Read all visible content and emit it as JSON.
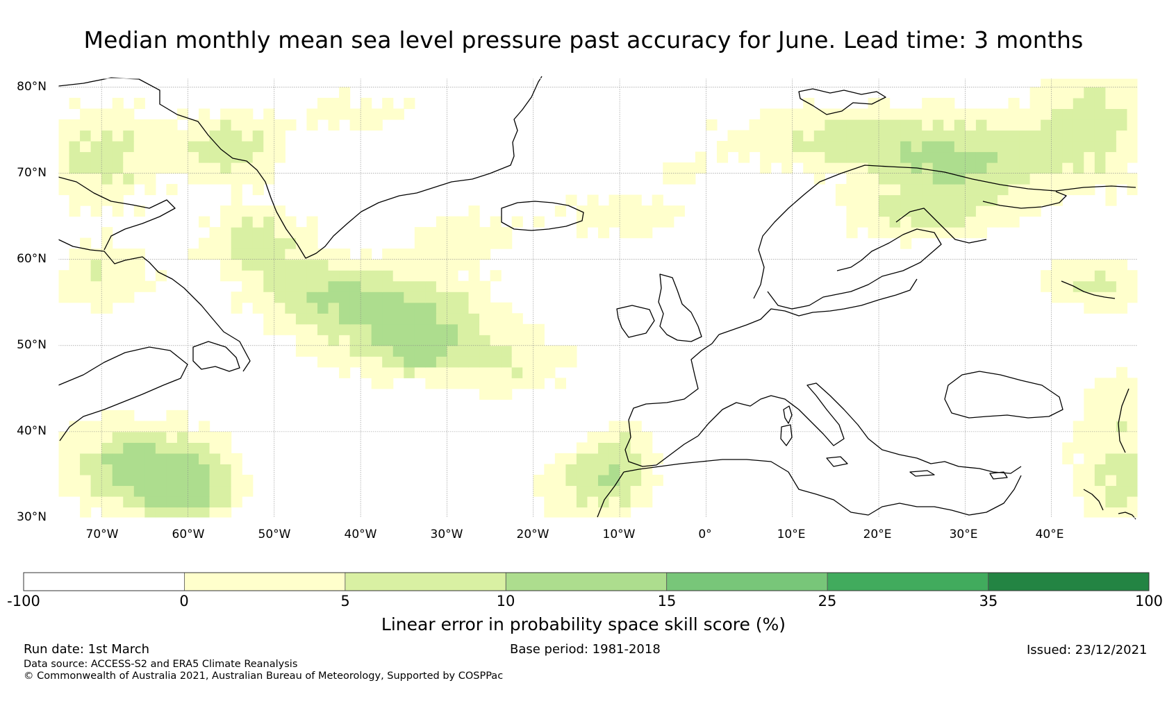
{
  "title": "Median monthly mean sea level pressure past accuracy for June. Lead time: 3 months",
  "map": {
    "lon_range": [
      -75,
      50
    ],
    "lat_range": [
      30,
      81
    ],
    "lat_labels": [
      "30°N",
      "40°N",
      "50°N",
      "60°N",
      "70°N",
      "80°N"
    ],
    "lat_values": [
      30,
      40,
      50,
      60,
      70,
      80
    ],
    "lon_labels": [
      "70°W",
      "60°W",
      "50°W",
      "40°W",
      "30°W",
      "20°W",
      "10°W",
      "0°",
      "10°E",
      "20°E",
      "30°E",
      "40°E"
    ],
    "lon_values": [
      -70,
      -60,
      -50,
      -40,
      -30,
      -20,
      -10,
      0,
      10,
      20,
      30,
      40
    ]
  },
  "colorbar": {
    "boundaries": [
      "-100",
      "0",
      "5",
      "10",
      "15",
      "25",
      "35",
      "100"
    ],
    "colors": [
      "#ffffff",
      "#ffffcc",
      "#d9f0a3",
      "#addd8e",
      "#78c679",
      "#41ab5d",
      "#238443"
    ],
    "label": "Linear error in probability space skill score (%)"
  },
  "footer": {
    "run_date": "Run date: 1st March",
    "base_period": "Base period: 1981-2018",
    "issued": "Issued: 23/12/2021",
    "data_source": "Data source: ACCESS-S2 and ERA5 Climate Reanalysis",
    "copyright": "© Commonwealth of Australia 2021, Australian Bureau of Meteorology, Supported by COSPPac"
  }
}
